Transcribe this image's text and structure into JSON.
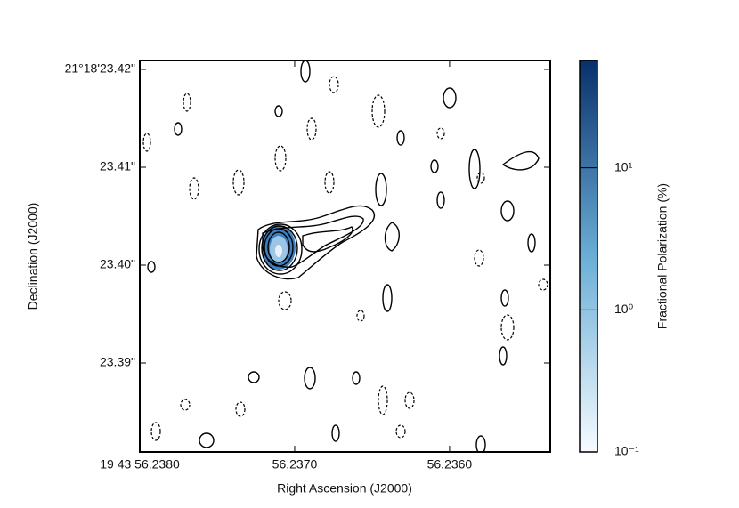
{
  "chart_data": {
    "type": "contour",
    "xlabel": "Right Ascension (J2000)",
    "ylabel": "Declination (J2000)",
    "xlim": [
      56.238,
      56.23535
    ],
    "xticks": [
      {
        "value": 56.238,
        "label": "19 43 56.2380"
      },
      {
        "value": 56.237,
        "label": "56.2370"
      },
      {
        "value": 56.236,
        "label": "56.2360"
      }
    ],
    "ylim": [
      23.38091,
      23.42091
    ],
    "yticks": [
      {
        "value": 23.42,
        "label": "21°18'23.42\""
      },
      {
        "value": 23.41,
        "label": "23.41\""
      },
      {
        "value": 23.4,
        "label": "23.40\""
      },
      {
        "value": 23.39,
        "label": "23.39\""
      }
    ],
    "colorbar": {
      "label": "Fractional Polarization (%)",
      "scale": "log",
      "lim": [
        0.1,
        57
      ],
      "ticks": [
        {
          "value": 0.1,
          "label": "10⁻¹"
        },
        {
          "value": 1,
          "label": "10⁰"
        },
        {
          "value": 10,
          "label": "10¹"
        }
      ],
      "colors": [
        "#f7fbff",
        "#6aaed6",
        "#08306b"
      ]
    }
  }
}
